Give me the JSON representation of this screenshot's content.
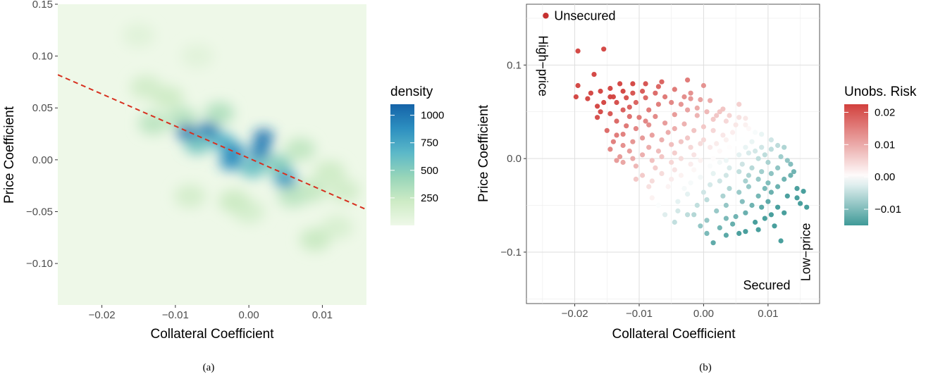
{
  "chart_data": [
    {
      "type": "heatmap",
      "panel_label": "(a)",
      "xlabel": "Collateral Coefficient",
      "ylabel": "Price Coefficient",
      "xlim": [
        -0.026,
        0.016
      ],
      "ylim": [
        -0.14,
        0.15
      ],
      "x_ticks": [
        -0.02,
        -0.01,
        0.0,
        0.01
      ],
      "x_tick_labels": [
        "−0.02",
        "−0.01",
        "0.00",
        "0.01"
      ],
      "y_ticks": [
        -0.1,
        -0.05,
        0.0,
        0.05,
        0.1,
        0.15
      ],
      "y_tick_labels": [
        "−0.10",
        "−0.05",
        "0.00",
        "0.05",
        "0.10",
        "0.15"
      ],
      "grid": false,
      "legend": {
        "title": "density",
        "position": "right",
        "ticks": [
          250,
          500,
          750,
          1000
        ],
        "tick_labels": [
          "250",
          "500",
          "750",
          "1000"
        ],
        "range": [
          0,
          1100
        ],
        "colors": [
          "#eef8e8",
          "#cdebc5",
          "#97d5b9",
          "#5bb8c8",
          "#2d8fc0",
          "#1563a8"
        ]
      },
      "density_peaks": [
        {
          "x": -0.0085,
          "y": 0.027,
          "value": 1000
        },
        {
          "x": -0.0055,
          "y": 0.029,
          "value": 980
        },
        {
          "x": 0.002,
          "y": 0.022,
          "value": 1030
        },
        {
          "x": -0.002,
          "y": 0.008,
          "value": 900
        },
        {
          "x": 0.0015,
          "y": 0.008,
          "value": 960
        },
        {
          "x": -0.0025,
          "y": -0.002,
          "value": 880
        },
        {
          "x": 0.005,
          "y": -0.019,
          "value": 820
        },
        {
          "x": -0.0035,
          "y": 0.017,
          "value": 700
        },
        {
          "x": -0.007,
          "y": 0.015,
          "value": 560
        },
        {
          "x": 0.0005,
          "y": -0.008,
          "value": 600
        },
        {
          "x": 0.004,
          "y": -0.005,
          "value": 500
        },
        {
          "x": -0.009,
          "y": 0.04,
          "value": 300
        },
        {
          "x": -0.004,
          "y": 0.045,
          "value": 320
        },
        {
          "x": -0.013,
          "y": 0.035,
          "value": 280
        },
        {
          "x": -0.014,
          "y": 0.07,
          "value": 180
        },
        {
          "x": -0.011,
          "y": 0.06,
          "value": 200
        },
        {
          "x": -0.015,
          "y": 0.12,
          "value": 90
        },
        {
          "x": -0.007,
          "y": 0.1,
          "value": 80
        },
        {
          "x": 0.006,
          "y": -0.035,
          "value": 280
        },
        {
          "x": 0.0085,
          "y": -0.03,
          "value": 240
        },
        {
          "x": 0.011,
          "y": -0.012,
          "value": 200
        },
        {
          "x": 0.013,
          "y": -0.03,
          "value": 180
        },
        {
          "x": 0.009,
          "y": -0.077,
          "value": 230
        },
        {
          "x": 0.012,
          "y": -0.065,
          "value": 140
        },
        {
          "x": -0.008,
          "y": -0.035,
          "value": 170
        },
        {
          "x": 0.0,
          "y": -0.05,
          "value": 160
        },
        {
          "x": -0.002,
          "y": -0.04,
          "value": 220
        },
        {
          "x": 0.007,
          "y": 0.01,
          "value": 260
        }
      ],
      "regression_line": {
        "style": "dashed",
        "color": "#d7301f",
        "points": [
          [
            -0.026,
            0.082
          ],
          [
            0.016,
            -0.048
          ]
        ]
      }
    },
    {
      "type": "scatter",
      "panel_label": "(b)",
      "xlabel": "Collateral Coefficient",
      "ylabel": "Price Coefficient",
      "xlim": [
        -0.0275,
        0.018
      ],
      "ylim": [
        -0.155,
        0.165
      ],
      "x_ticks": [
        -0.02,
        -0.01,
        0.0,
        0.01
      ],
      "x_tick_labels": [
        "−0.02",
        "−0.01",
        "0.00",
        "0.01"
      ],
      "y_ticks": [
        -0.1,
        0.0,
        0.1
      ],
      "y_tick_labels": [
        "−0.1",
        "0.0",
        "0.1"
      ],
      "grid": true,
      "annotations": [
        {
          "text": "Unsecured",
          "x": -0.0245,
          "y": 0.149,
          "marker_color": "#c5302f"
        },
        {
          "text": "High−price",
          "x": -0.0256,
          "y": 0.099,
          "rotation": 90
        },
        {
          "text": "Low−price",
          "x": 0.0165,
          "y": -0.1,
          "rotation": -90
        },
        {
          "text": "Secured",
          "x": 0.0098,
          "y": -0.14
        }
      ],
      "legend": {
        "title": "Unobs. Risk",
        "position": "right",
        "ticks": [
          0.02,
          0.01,
          0.0,
          -0.01
        ],
        "tick_labels": [
          "0.02",
          "0.01",
          "0.00",
          "−0.01"
        ],
        "range": [
          -0.015,
          0.0225
        ],
        "colors_low_mid_high": [
          "#3f9a98",
          "#ffffff",
          "#d2403d"
        ]
      },
      "color_rule": "unobs_risk = -0.8 * (x - 0.002) + 0.15 * y",
      "points": [
        [
          -0.0195,
          0.115
        ],
        [
          -0.0155,
          0.117
        ],
        [
          -0.017,
          0.09
        ],
        [
          -0.0195,
          0.078
        ],
        [
          -0.0198,
          0.066
        ],
        [
          -0.018,
          0.064
        ],
        [
          -0.016,
          0.072
        ],
        [
          -0.0145,
          0.075
        ],
        [
          -0.013,
          0.08
        ],
        [
          -0.011,
          0.08
        ],
        [
          -0.009,
          0.08
        ],
        [
          -0.007,
          0.077
        ],
        [
          -0.0045,
          0.074
        ],
        [
          -0.002,
          0.064
        ],
        [
          -0.0005,
          0.063
        ],
        [
          0.001,
          0.062
        ],
        [
          0.003,
          0.053
        ],
        [
          0.0055,
          0.044
        ],
        [
          0.0065,
          0.043
        ],
        [
          0.008,
          0.028
        ],
        [
          -0.0155,
          0.06
        ],
        [
          -0.0145,
          0.048
        ],
        [
          -0.016,
          0.05
        ],
        [
          -0.0135,
          0.06
        ],
        [
          -0.012,
          0.065
        ],
        [
          -0.0115,
          0.055
        ],
        [
          -0.0105,
          0.06
        ],
        [
          -0.009,
          0.065
        ],
        [
          -0.0075,
          0.07
        ],
        [
          -0.006,
          0.066
        ],
        [
          -0.0035,
          0.058
        ],
        [
          -0.0025,
          0.052
        ],
        [
          -0.0045,
          0.047
        ],
        [
          -0.001,
          0.046
        ],
        [
          0.0005,
          0.05
        ],
        [
          0.002,
          0.046
        ],
        [
          0.0035,
          0.04
        ],
        [
          0.005,
          0.036
        ],
        [
          0.007,
          0.032
        ],
        [
          0.009,
          0.026
        ],
        [
          -0.015,
          0.03
        ],
        [
          -0.0135,
          0.025
        ],
        [
          -0.012,
          0.035
        ],
        [
          -0.0105,
          0.032
        ],
        [
          -0.009,
          0.04
        ],
        [
          -0.0075,
          0.045
        ],
        [
          -0.006,
          0.038
        ],
        [
          -0.0045,
          0.032
        ],
        [
          -0.003,
          0.037
        ],
        [
          -0.0015,
          0.03
        ],
        [
          0.0,
          0.034
        ],
        [
          0.0015,
          0.03
        ],
        [
          0.003,
          0.025
        ],
        [
          0.0045,
          0.028
        ],
        [
          0.006,
          0.021
        ],
        [
          0.0075,
          0.018
        ],
        [
          0.009,
          0.012
        ],
        [
          0.0105,
          0.01
        ],
        [
          0.012,
          0.002
        ],
        [
          0.013,
          -0.002
        ],
        [
          -0.0145,
          0.01
        ],
        [
          -0.0125,
          0.014
        ],
        [
          -0.011,
          0.018
        ],
        [
          -0.0095,
          0.022
        ],
        [
          -0.008,
          0.025
        ],
        [
          -0.0065,
          0.02
        ],
        [
          -0.005,
          0.015
        ],
        [
          -0.0035,
          0.018
        ],
        [
          -0.002,
          0.012
        ],
        [
          -0.0005,
          0.016
        ],
        [
          0.001,
          0.012
        ],
        [
          0.0025,
          0.008
        ],
        [
          0.004,
          0.012
        ],
        [
          0.0055,
          0.004
        ],
        [
          0.007,
          0.006
        ],
        [
          0.0085,
          0.0
        ],
        [
          0.01,
          -0.004
        ],
        [
          0.0115,
          -0.01
        ],
        [
          0.0135,
          -0.018
        ],
        [
          0.0145,
          -0.032
        ],
        [
          -0.0125,
          -0.004
        ],
        [
          -0.011,
          0.0
        ],
        [
          -0.0095,
          0.004
        ],
        [
          -0.008,
          -0.002
        ],
        [
          -0.0065,
          0.002
        ],
        [
          -0.005,
          -0.004
        ],
        [
          -0.0035,
          0.0
        ],
        [
          -0.002,
          -0.006
        ],
        [
          -0.0005,
          -0.002
        ],
        [
          0.001,
          -0.008
        ],
        [
          0.0025,
          -0.004
        ],
        [
          0.004,
          -0.01
        ],
        [
          0.0055,
          -0.014
        ],
        [
          0.007,
          -0.018
        ],
        [
          0.0085,
          -0.022
        ],
        [
          0.01,
          -0.026
        ],
        [
          0.0115,
          -0.03
        ],
        [
          0.013,
          -0.04
        ],
        [
          0.015,
          -0.048
        ],
        [
          0.016,
          -0.052
        ],
        [
          -0.0095,
          -0.018
        ],
        [
          -0.008,
          -0.024
        ],
        [
          -0.0065,
          -0.016
        ],
        [
          -0.005,
          -0.022
        ],
        [
          -0.0035,
          -0.018
        ],
        [
          -0.002,
          -0.026
        ],
        [
          -0.0005,
          -0.02
        ],
        [
          0.001,
          -0.028
        ],
        [
          0.0025,
          -0.024
        ],
        [
          0.004,
          -0.032
        ],
        [
          0.0055,
          -0.036
        ],
        [
          0.007,
          -0.03
        ],
        [
          0.0085,
          -0.04
        ],
        [
          0.01,
          -0.046
        ],
        [
          0.0115,
          -0.052
        ],
        [
          0.0125,
          -0.058
        ],
        [
          -0.0055,
          -0.04
        ],
        [
          -0.004,
          -0.046
        ],
        [
          -0.0025,
          -0.038
        ],
        [
          -0.001,
          -0.05
        ],
        [
          0.0005,
          -0.044
        ],
        [
          0.002,
          -0.056
        ],
        [
          0.0035,
          -0.05
        ],
        [
          0.005,
          -0.062
        ],
        [
          0.0065,
          -0.058
        ],
        [
          0.008,
          -0.068
        ],
        [
          0.0095,
          -0.064
        ],
        [
          0.011,
          -0.072
        ],
        [
          0.012,
          -0.088
        ],
        [
          -0.0025,
          -0.06
        ],
        [
          0.0005,
          -0.066
        ],
        [
          0.0025,
          -0.074
        ],
        [
          0.0045,
          -0.07
        ],
        [
          0.0065,
          -0.078
        ],
        [
          0.0085,
          -0.076
        ],
        [
          -0.006,
          -0.06
        ],
        [
          -0.0045,
          -0.068
        ],
        [
          0.0015,
          -0.09
        ],
        [
          -0.008,
          -0.042
        ],
        [
          -0.0105,
          -0.022
        ],
        [
          -0.0135,
          0.04
        ],
        [
          -0.0115,
          0.045
        ],
        [
          -0.0085,
          0.052
        ],
        [
          -0.007,
          0.058
        ],
        [
          -0.005,
          0.06
        ],
        [
          -0.002,
          0.07
        ],
        [
          0.0,
          0.078
        ],
        [
          -0.0025,
          0.084
        ],
        [
          0.0055,
          0.058
        ],
        [
          0.0025,
          0.05
        ],
        [
          0.0105,
          0.02
        ],
        [
          0.0115,
          0.014
        ],
        [
          0.0125,
          0.012
        ],
        [
          0.0135,
          -0.006
        ],
        [
          0.014,
          -0.014
        ],
        [
          0.0155,
          -0.035
        ],
        [
          0.0145,
          -0.042
        ],
        [
          0.0105,
          -0.036
        ],
        [
          0.009,
          -0.052
        ],
        [
          -0.0175,
          0.07
        ],
        [
          -0.0165,
          0.056
        ],
        [
          -0.014,
          0.066
        ],
        [
          -0.0125,
          0.072
        ],
        [
          -0.0095,
          0.072
        ],
        [
          -0.0065,
          0.082
        ],
        [
          -0.003,
          0.066
        ],
        [
          -0.001,
          0.054
        ],
        [
          0.0015,
          0.042
        ],
        [
          0.004,
          0.046
        ],
        [
          0.0065,
          0.036
        ],
        [
          -0.0125,
          0.026
        ],
        [
          -0.01,
          0.044
        ],
        [
          -0.0085,
          0.036
        ],
        [
          -0.0055,
          0.028
        ],
        [
          -0.0025,
          0.022
        ],
        [
          0.0,
          0.02
        ],
        [
          0.002,
          0.016
        ],
        [
          0.0035,
          0.02
        ],
        [
          0.005,
          0.016
        ],
        [
          0.0065,
          0.012
        ],
        [
          0.008,
          0.008
        ],
        [
          0.0095,
          0.004
        ],
        [
          -0.0115,
          0.008
        ],
        [
          -0.0085,
          0.012
        ],
        [
          -0.007,
          0.008
        ],
        [
          -0.0045,
          0.006
        ],
        [
          -0.0015,
          0.004
        ],
        [
          0.0015,
          0.0
        ],
        [
          0.0035,
          -0.002
        ],
        [
          0.006,
          -0.006
        ],
        [
          0.0075,
          -0.01
        ],
        [
          0.009,
          -0.014
        ],
        [
          0.0105,
          -0.016
        ],
        [
          0.0125,
          -0.022
        ],
        [
          -0.0105,
          -0.008
        ],
        [
          -0.0075,
          -0.01
        ],
        [
          -0.0045,
          -0.012
        ],
        [
          -0.0015,
          -0.012
        ],
        [
          0.0015,
          -0.016
        ],
        [
          0.0035,
          -0.018
        ],
        [
          0.0065,
          -0.024
        ],
        [
          0.0095,
          -0.032
        ],
        [
          -0.0085,
          -0.03
        ],
        [
          -0.0055,
          -0.03
        ],
        [
          -0.003,
          -0.032
        ],
        [
          0.0,
          -0.036
        ],
        [
          0.003,
          -0.04
        ],
        [
          0.006,
          -0.046
        ],
        [
          0.0075,
          -0.05
        ],
        [
          0.0105,
          -0.06
        ],
        [
          -0.007,
          -0.05
        ],
        [
          -0.004,
          -0.056
        ],
        [
          -0.0015,
          -0.06
        ],
        [
          0.0035,
          -0.064
        ],
        [
          0.0055,
          -0.08
        ],
        [
          -0.0125,
          0.052
        ],
        [
          -0.011,
          0.07
        ],
        [
          -0.0145,
          0.066
        ],
        [
          -0.0165,
          0.044
        ],
        [
          -0.013,
          0.002
        ],
        [
          -0.014,
          0.018
        ],
        [
          -0.0135,
          -0.002
        ],
        [
          0.0005,
          -0.08
        ],
        [
          -0.0005,
          -0.072
        ],
        [
          0.0035,
          -0.082
        ]
      ]
    }
  ],
  "captions": [
    "(a)",
    "(b)"
  ]
}
